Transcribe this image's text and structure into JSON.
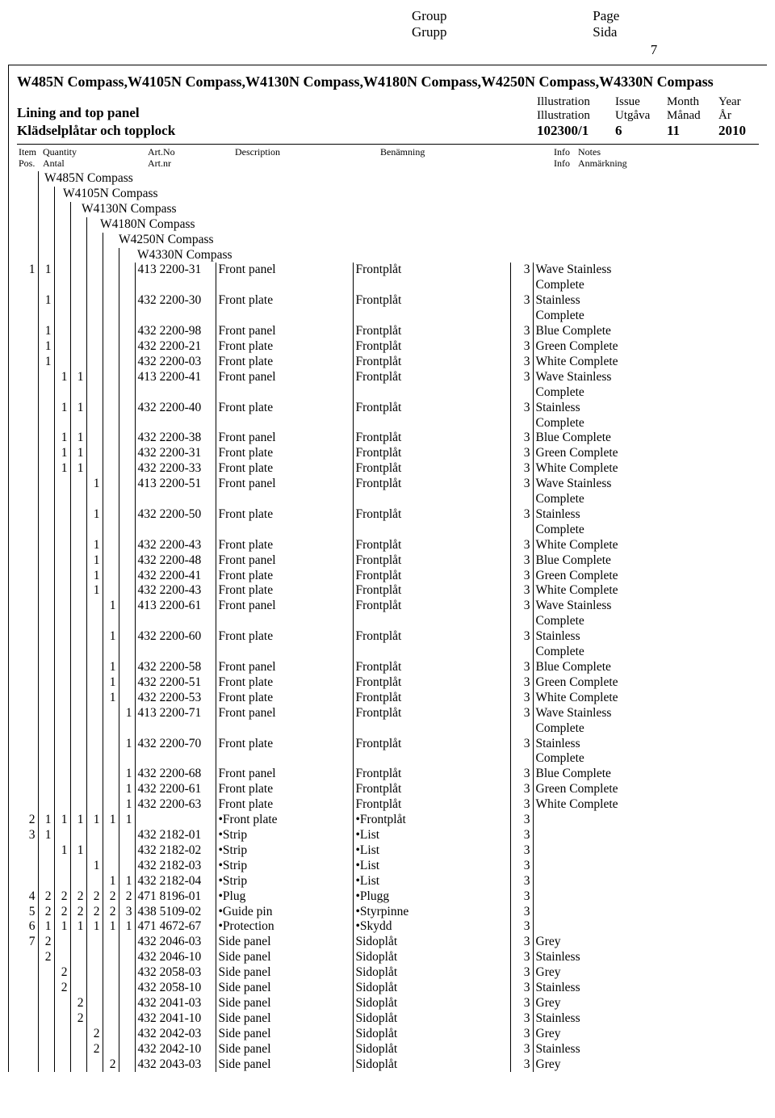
{
  "header": {
    "group_en": "Group",
    "group_sv": "Grupp",
    "page_en": "Page",
    "page_sv": "Sida",
    "page_number": "7"
  },
  "titles": {
    "models_title": "W485N Compass,W4105N Compass,W4130N Compass,W4180N Compass,W4250N Compass,W4330N Compass",
    "en_subtitle": "Lining and top panel",
    "sv_subtitle": "Klädselplåtar och topplock"
  },
  "meta": {
    "labels": {
      "illustration_en": "Illustration",
      "illustration_sv": "Illustration",
      "issue_en": "Issue",
      "issue_sv": "Utgåva",
      "month_en": "Month",
      "month_sv": "Månad",
      "year_en": "Year",
      "year_sv": "År"
    },
    "values": {
      "illustration": "102300/1",
      "issue": "6",
      "month": "11",
      "year": "2010"
    }
  },
  "column_headers": {
    "item_en": "Item",
    "item_sv": "Pos.",
    "qty_en": "Quantity",
    "qty_sv": "Antal",
    "artno_en": "Art.No",
    "artno_sv": "Art.nr",
    "desc_en": "Description",
    "ben_sv": "Benämning",
    "info_en": "Info",
    "info_sv": "Info",
    "notes_en": "Notes",
    "notes_sv": "Anmärkning"
  },
  "model_columns": [
    "W485N Compass",
    "W4105N Compass",
    "W4130N Compass",
    "W4180N Compass",
    "W4250N Compass",
    "W4330N Compass"
  ],
  "rows": [
    {
      "item": "1",
      "q": [
        "1",
        "",
        "",
        "",
        "",
        ""
      ],
      "art": "413 2200-31",
      "desc": "Front panel",
      "ben": "Frontplåt",
      "info": "3",
      "note": "Wave Stainless Complete"
    },
    {
      "item": "",
      "q": [
        "1",
        "",
        "",
        "",
        "",
        ""
      ],
      "art": "432 2200-30",
      "desc": "Front plate",
      "ben": "Frontplåt",
      "info": "3",
      "note": "Stainless Complete"
    },
    {
      "item": "",
      "q": [
        "1",
        "",
        "",
        "",
        "",
        ""
      ],
      "art": "432 2200-98",
      "desc": "Front panel",
      "ben": "Frontplåt",
      "info": "3",
      "note": "Blue Complete"
    },
    {
      "item": "",
      "q": [
        "1",
        "",
        "",
        "",
        "",
        ""
      ],
      "art": "432 2200-21",
      "desc": "Front plate",
      "ben": "Frontplåt",
      "info": "3",
      "note": "Green Complete"
    },
    {
      "item": "",
      "q": [
        "1",
        "",
        "",
        "",
        "",
        ""
      ],
      "art": "432 2200-03",
      "desc": "Front plate",
      "ben": "Frontplåt",
      "info": "3",
      "note": "White Complete"
    },
    {
      "item": "",
      "q": [
        "",
        "1",
        "1",
        "",
        "",
        ""
      ],
      "art": "413 2200-41",
      "desc": "Front panel",
      "ben": "Frontplåt",
      "info": "3",
      "note": "Wave Stainless Complete"
    },
    {
      "item": "",
      "q": [
        "",
        "1",
        "1",
        "",
        "",
        ""
      ],
      "art": "432 2200-40",
      "desc": "Front plate",
      "ben": "Frontplåt",
      "info": "3",
      "note": "Stainless Complete"
    },
    {
      "item": "",
      "q": [
        "",
        "1",
        "1",
        "",
        "",
        ""
      ],
      "art": "432 2200-38",
      "desc": "Front panel",
      "ben": "Frontplåt",
      "info": "3",
      "note": "Blue Complete"
    },
    {
      "item": "",
      "q": [
        "",
        "1",
        "1",
        "",
        "",
        ""
      ],
      "art": "432 2200-31",
      "desc": "Front plate",
      "ben": "Frontplåt",
      "info": "3",
      "note": "Green Complete"
    },
    {
      "item": "",
      "q": [
        "",
        "1",
        "1",
        "",
        "",
        ""
      ],
      "art": "432 2200-33",
      "desc": "Front plate",
      "ben": "Frontplåt",
      "info": "3",
      "note": "White Complete"
    },
    {
      "item": "",
      "q": [
        "",
        "",
        "",
        "1",
        "",
        ""
      ],
      "art": "413 2200-51",
      "desc": "Front panel",
      "ben": "Frontplåt",
      "info": "3",
      "note": "Wave Stainless Complete"
    },
    {
      "item": "",
      "q": [
        "",
        "",
        "",
        "1",
        "",
        ""
      ],
      "art": "432 2200-50",
      "desc": "Front plate",
      "ben": "Frontplåt",
      "info": "3",
      "note": "Stainless Complete"
    },
    {
      "item": "",
      "q": [
        "",
        "",
        "",
        "1",
        "",
        ""
      ],
      "art": "432 2200-43",
      "desc": "Front plate",
      "ben": "Frontplåt",
      "info": "3",
      "note": "White Complete"
    },
    {
      "item": "",
      "q": [
        "",
        "",
        "",
        "1",
        "",
        ""
      ],
      "art": "432 2200-48",
      "desc": "Front panel",
      "ben": "Frontplåt",
      "info": "3",
      "note": "Blue Complete"
    },
    {
      "item": "",
      "q": [
        "",
        "",
        "",
        "1",
        "",
        ""
      ],
      "art": "432 2200-41",
      "desc": "Front plate",
      "ben": "Frontplåt",
      "info": "3",
      "note": "Green Complete"
    },
    {
      "item": "",
      "q": [
        "",
        "",
        "",
        "1",
        "",
        ""
      ],
      "art": "432 2200-43",
      "desc": "Front plate",
      "ben": "Frontplåt",
      "info": "3",
      "note": "White Complete"
    },
    {
      "item": "",
      "q": [
        "",
        "",
        "",
        "",
        "1",
        ""
      ],
      "art": "413 2200-61",
      "desc": "Front panel",
      "ben": "Frontplåt",
      "info": "3",
      "note": "Wave Stainless Complete"
    },
    {
      "item": "",
      "q": [
        "",
        "",
        "",
        "",
        "1",
        ""
      ],
      "art": "432 2200-60",
      "desc": "Front plate",
      "ben": "Frontplåt",
      "info": "3",
      "note": "Stainless Complete"
    },
    {
      "item": "",
      "q": [
        "",
        "",
        "",
        "",
        "1",
        ""
      ],
      "art": "432 2200-58",
      "desc": "Front panel",
      "ben": "Frontplåt",
      "info": "3",
      "note": "Blue Complete"
    },
    {
      "item": "",
      "q": [
        "",
        "",
        "",
        "",
        "1",
        ""
      ],
      "art": "432 2200-51",
      "desc": "Front plate",
      "ben": "Frontplåt",
      "info": "3",
      "note": "Green Complete"
    },
    {
      "item": "",
      "q": [
        "",
        "",
        "",
        "",
        "1",
        ""
      ],
      "art": "432 2200-53",
      "desc": "Front plate",
      "ben": "Frontplåt",
      "info": "3",
      "note": "White Complete"
    },
    {
      "item": "",
      "q": [
        "",
        "",
        "",
        "",
        "",
        "1"
      ],
      "art": "413 2200-71",
      "desc": "Front panel",
      "ben": "Frontplåt",
      "info": "3",
      "note": "Wave Stainless Complete"
    },
    {
      "item": "",
      "q": [
        "",
        "",
        "",
        "",
        "",
        "1"
      ],
      "art": "432 2200-70",
      "desc": "Front plate",
      "ben": "Frontplåt",
      "info": "3",
      "note": "Stainless Complete"
    },
    {
      "item": "",
      "q": [
        "",
        "",
        "",
        "",
        "",
        "1"
      ],
      "art": "432 2200-68",
      "desc": "Front panel",
      "ben": "Frontplåt",
      "info": "3",
      "note": "Blue Complete"
    },
    {
      "item": "",
      "q": [
        "",
        "",
        "",
        "",
        "",
        "1"
      ],
      "art": "432 2200-61",
      "desc": "Front plate",
      "ben": "Frontplåt",
      "info": "3",
      "note": "Green Complete"
    },
    {
      "item": "",
      "q": [
        "",
        "",
        "",
        "",
        "",
        "1"
      ],
      "art": "432 2200-63",
      "desc": "Front plate",
      "ben": "Frontplåt",
      "info": "3",
      "note": "White Complete"
    },
    {
      "item": "2",
      "q": [
        "1",
        "1",
        "1",
        "1",
        "1",
        "1"
      ],
      "art": "",
      "desc": "•Front plate",
      "ben": "•Frontplåt",
      "info": "3",
      "note": ""
    },
    {
      "item": "3",
      "q": [
        "1",
        "",
        "",
        "",
        "",
        ""
      ],
      "art": "432 2182-01",
      "desc": "•Strip",
      "ben": "•List",
      "info": "3",
      "note": ""
    },
    {
      "item": "",
      "q": [
        "",
        "1",
        "1",
        "",
        "",
        ""
      ],
      "art": "432 2182-02",
      "desc": "•Strip",
      "ben": "•List",
      "info": "3",
      "note": ""
    },
    {
      "item": "",
      "q": [
        "",
        "",
        "",
        "1",
        "",
        ""
      ],
      "art": "432 2182-03",
      "desc": "•Strip",
      "ben": "•List",
      "info": "3",
      "note": ""
    },
    {
      "item": "",
      "q": [
        "",
        "",
        "",
        "",
        "1",
        "1"
      ],
      "art": "432 2182-04",
      "desc": "•Strip",
      "ben": "•List",
      "info": "3",
      "note": ""
    },
    {
      "item": "4",
      "q": [
        "2",
        "2",
        "2",
        "2",
        "2",
        "2"
      ],
      "art": "471 8196-01",
      "desc": "•Plug",
      "ben": "•Plugg",
      "info": "3",
      "note": ""
    },
    {
      "item": "5",
      "q": [
        "2",
        "2",
        "2",
        "2",
        "2",
        "3"
      ],
      "art": "438 5109-02",
      "desc": "•Guide pin",
      "ben": "•Styrpinne",
      "info": "3",
      "note": ""
    },
    {
      "item": "6",
      "q": [
        "1",
        "1",
        "1",
        "1",
        "1",
        "1"
      ],
      "art": "471 4672-67",
      "desc": "•Protection",
      "ben": "•Skydd",
      "info": "3",
      "note": ""
    },
    {
      "item": "7",
      "q": [
        "2",
        "",
        "",
        "",
        "",
        ""
      ],
      "art": "432 2046-03",
      "desc": "Side panel",
      "ben": "Sidoplåt",
      "info": "3",
      "note": "Grey"
    },
    {
      "item": "",
      "q": [
        "2",
        "",
        "",
        "",
        "",
        ""
      ],
      "art": "432 2046-10",
      "desc": "Side panel",
      "ben": "Sidoplåt",
      "info": "3",
      "note": "Stainless"
    },
    {
      "item": "",
      "q": [
        "",
        "2",
        "",
        "",
        "",
        ""
      ],
      "art": "432 2058-03",
      "desc": "Side panel",
      "ben": "Sidoplåt",
      "info": "3",
      "note": "Grey"
    },
    {
      "item": "",
      "q": [
        "",
        "2",
        "",
        "",
        "",
        ""
      ],
      "art": "432 2058-10",
      "desc": "Side panel",
      "ben": "Sidoplåt",
      "info": "3",
      "note": "Stainless"
    },
    {
      "item": "",
      "q": [
        "",
        "",
        "2",
        "",
        "",
        ""
      ],
      "art": "432 2041-03",
      "desc": "Side panel",
      "ben": "Sidoplåt",
      "info": "3",
      "note": "Grey"
    },
    {
      "item": "",
      "q": [
        "",
        "",
        "2",
        "",
        "",
        ""
      ],
      "art": "432 2041-10",
      "desc": "Side panel",
      "ben": "Sidoplåt",
      "info": "3",
      "note": "Stainless"
    },
    {
      "item": "",
      "q": [
        "",
        "",
        "",
        "2",
        "",
        ""
      ],
      "art": "432 2042-03",
      "desc": "Side panel",
      "ben": "Sidoplåt",
      "info": "3",
      "note": "Grey"
    },
    {
      "item": "",
      "q": [
        "",
        "",
        "",
        "2",
        "",
        ""
      ],
      "art": "432 2042-10",
      "desc": "Side panel",
      "ben": "Sidoplåt",
      "info": "3",
      "note": "Stainless"
    },
    {
      "item": "",
      "q": [
        "",
        "",
        "",
        "",
        "2",
        ""
      ],
      "art": "432 2043-03",
      "desc": "Side panel",
      "ben": "Sidoplåt",
      "info": "3",
      "note": "Grey"
    }
  ],
  "note_wrap_markers": [
    "Wave Stainless Complete",
    "Stainless Complete"
  ]
}
